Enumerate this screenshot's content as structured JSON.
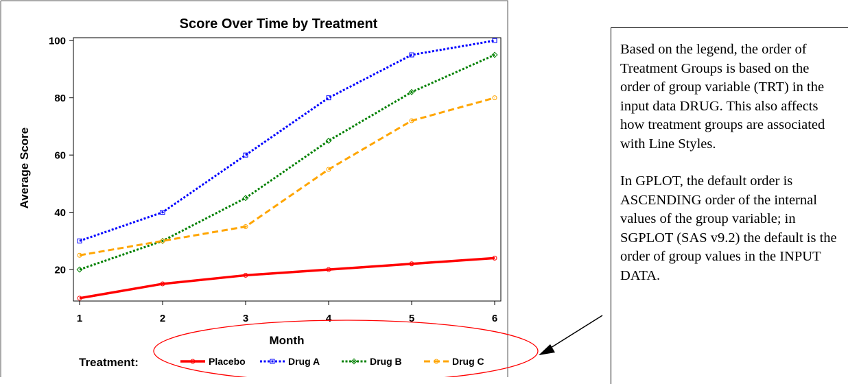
{
  "chart_data": {
    "type": "line",
    "title": "Score Over Time by Treatment",
    "xlabel": "Month",
    "ylabel": "Average Score",
    "x": [
      1,
      2,
      3,
      4,
      5,
      6
    ],
    "x_ticks": [
      "1",
      "2",
      "3",
      "4",
      "5",
      "6"
    ],
    "y_ticks": [
      "20",
      "40",
      "60",
      "80",
      "100"
    ],
    "xlim": [
      1,
      6
    ],
    "ylim": [
      9,
      101
    ],
    "grid": false,
    "legend_title": "Treatment:",
    "legend_position": "bottom",
    "series": [
      {
        "name": "Placebo",
        "values": [
          10,
          15,
          18,
          20,
          22,
          24
        ],
        "color": "#ff0000",
        "line_style": "solid",
        "marker": "circle"
      },
      {
        "name": "Drug A",
        "values": [
          30,
          40,
          60,
          80,
          95,
          100
        ],
        "color": "#0000ff",
        "line_style": "dotted",
        "marker": "square"
      },
      {
        "name": "Drug B",
        "values": [
          20,
          30,
          45,
          65,
          82,
          95
        ],
        "color": "#008000",
        "line_style": "dotted",
        "marker": "diamond"
      },
      {
        "name": "Drug C",
        "values": [
          25,
          30,
          35,
          55,
          72,
          80
        ],
        "color": "#ffa500",
        "line_style": "dashed",
        "marker": "circle"
      }
    ]
  },
  "annotations": {
    "legend_highlight": "red ellipse around legend with black arrow pointing to it",
    "note_paragraphs": [
      "Based on the legend, the order of Treatment Groups is based on the order of group variable (TRT) in the input data DRUG.  This also affects how treatment groups are associated with Line Styles.",
      "In GPLOT, the default order is ASCENDING order of the internal values of the group variable; in SGPLOT (SAS v9.2) the default is the order of group values in the INPUT DATA."
    ]
  }
}
